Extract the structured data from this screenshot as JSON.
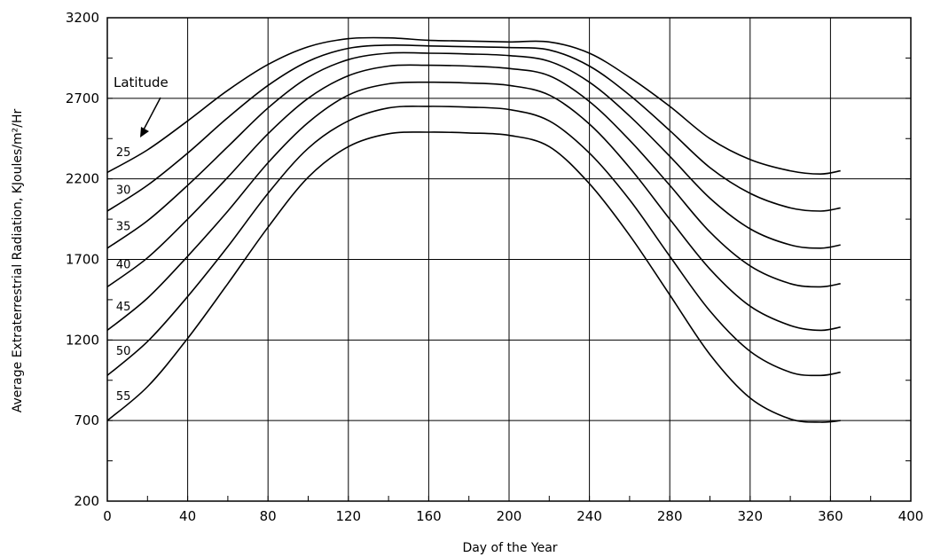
{
  "chart_data": {
    "type": "line",
    "title": "",
    "xlabel": "Day of the Year",
    "ylabel": "Average Extraterrestrial Radiation, KJoules/m²/Hr",
    "xlim": [
      0,
      400
    ],
    "ylim": [
      200,
      3200
    ],
    "xticks": [
      "0",
      "40",
      "80",
      "120",
      "160",
      "200",
      "240",
      "280",
      "320",
      "360",
      "400"
    ],
    "yticks": [
      "200",
      "700",
      "1200",
      "1700",
      "2200",
      "2700",
      "3200"
    ],
    "grid": true,
    "legend_title": "Latitude",
    "x": [
      0,
      20,
      40,
      60,
      80,
      100,
      120,
      140,
      160,
      180,
      200,
      220,
      240,
      260,
      280,
      300,
      320,
      340,
      355,
      365
    ],
    "series": [
      {
        "name": "25",
        "values": [
          2240,
          2380,
          2560,
          2750,
          2910,
          3020,
          3070,
          3075,
          3060,
          3055,
          3050,
          3050,
          2980,
          2830,
          2650,
          2450,
          2320,
          2250,
          2230,
          2250
        ]
      },
      {
        "name": "30",
        "values": [
          2000,
          2160,
          2360,
          2580,
          2780,
          2930,
          3010,
          3030,
          3025,
          3020,
          3015,
          3000,
          2900,
          2720,
          2500,
          2270,
          2110,
          2020,
          2000,
          2020
        ]
      },
      {
        "name": "35",
        "values": [
          1770,
          1940,
          2160,
          2400,
          2640,
          2830,
          2940,
          2980,
          2980,
          2975,
          2965,
          2930,
          2800,
          2590,
          2340,
          2080,
          1890,
          1790,
          1770,
          1790
        ]
      },
      {
        "name": "40",
        "values": [
          1530,
          1710,
          1950,
          2210,
          2480,
          2700,
          2840,
          2900,
          2905,
          2900,
          2885,
          2840,
          2680,
          2440,
          2160,
          1870,
          1660,
          1550,
          1530,
          1550
        ]
      },
      {
        "name": "45",
        "values": [
          1260,
          1460,
          1720,
          2000,
          2300,
          2550,
          2720,
          2790,
          2800,
          2795,
          2780,
          2720,
          2540,
          2270,
          1950,
          1640,
          1410,
          1290,
          1260,
          1280
        ]
      },
      {
        "name": "50",
        "values": [
          980,
          1190,
          1470,
          1780,
          2110,
          2390,
          2560,
          2640,
          2650,
          2645,
          2630,
          2560,
          2360,
          2070,
          1720,
          1380,
          1130,
          1000,
          980,
          1000
        ]
      },
      {
        "name": "55",
        "values": [
          700,
          910,
          1210,
          1550,
          1900,
          2210,
          2400,
          2480,
          2490,
          2485,
          2470,
          2400,
          2170,
          1850,
          1480,
          1110,
          840,
          710,
          690,
          700
        ]
      }
    ]
  }
}
